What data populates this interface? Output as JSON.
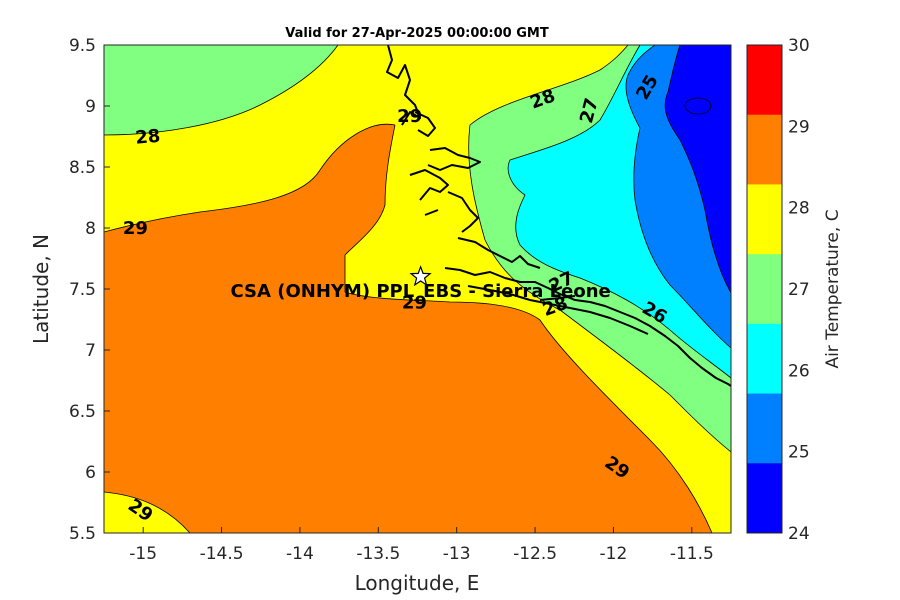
{
  "figure": {
    "title": "Valid for 27-Apr-2025 00:00:00 GMT",
    "xlabel": "Longitude, E",
    "ylabel": "Latitude, N",
    "xlim": [
      -15.25,
      -11.25
    ],
    "ylim": [
      5.5,
      9.5
    ],
    "xticks": [
      "-15",
      "-14.5",
      "-14",
      "-13.5",
      "-13",
      "-12.5",
      "-12",
      "-11.5"
    ],
    "yticks": [
      "5.5",
      "6",
      "6.5",
      "7",
      "7.5",
      "8",
      "8.5",
      "9",
      "9.5"
    ],
    "site_label": "CSA (ONHYM) PPL_EBS  - Sierra Leone",
    "site_marker": "star-icon",
    "site_lon": -13.23,
    "site_lat": 7.6
  },
  "contour_labels": [
    {
      "text": "28",
      "lon": -14.97,
      "lat": 8.74,
      "angle": -5
    },
    {
      "text": "29",
      "lon": -15.05,
      "lat": 7.99,
      "angle": 0
    },
    {
      "text": "29",
      "lon": -13.3,
      "lat": 8.91,
      "angle": 0
    },
    {
      "text": "28",
      "lon": -12.45,
      "lat": 9.05,
      "angle": -20
    },
    {
      "text": "27",
      "lon": -12.15,
      "lat": 8.96,
      "angle": -75
    },
    {
      "text": "25",
      "lon": -11.78,
      "lat": 9.15,
      "angle": -60
    },
    {
      "text": "29",
      "lon": -13.27,
      "lat": 7.38,
      "angle": 0
    },
    {
      "text": "27",
      "lon": -12.33,
      "lat": 7.55,
      "angle": -25
    },
    {
      "text": "28",
      "lon": -12.37,
      "lat": 7.35,
      "angle": -20
    },
    {
      "text": "26",
      "lon": -11.74,
      "lat": 7.3,
      "angle": 30
    },
    {
      "text": "29",
      "lon": -11.98,
      "lat": 6.03,
      "angle": 35
    },
    {
      "text": "29",
      "lon": -15.02,
      "lat": 5.68,
      "angle": 35
    }
  ],
  "colorbar": {
    "label": "Air Temperature, C",
    "min": 24,
    "max": 30,
    "ticks": [
      "24",
      "25",
      "26",
      "27",
      "28",
      "29",
      "30"
    ],
    "colors": [
      "#0000ff",
      "#0080ff",
      "#00ffff",
      "#80ff80",
      "#ffff00",
      "#ff8000"
    ],
    "top_color": "#ff0000"
  },
  "colors": {
    "band_24_25": "#0000ff",
    "band_25_26": "#0080ff",
    "band_26_27": "#00ffff",
    "band_27_28": "#80ff80",
    "band_28_29": "#ffff00",
    "band_29_30": "#ff8000",
    "coastline": "#000000"
  }
}
